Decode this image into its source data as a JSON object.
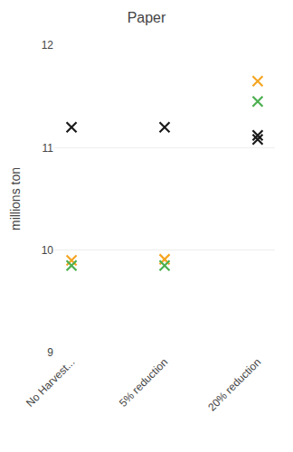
{
  "chart_data": {
    "type": "scatter",
    "title": "Paper",
    "ylabel": "millions ton",
    "categories": [
      "No Harvest...",
      "5% reduction",
      "20% reduction"
    ],
    "series": [
      {
        "color": "#1a1a1a",
        "values": [
          11.2,
          11.2,
          11.12
        ]
      },
      {
        "color": "#f5a623",
        "values": [
          9.9,
          9.91,
          11.65
        ]
      },
      {
        "color": "#4caf50",
        "values": [
          9.85,
          9.85,
          11.45
        ]
      },
      {
        "color": "#1a1a1a",
        "values": [
          null,
          null,
          11.08
        ]
      }
    ],
    "ylim": [
      9,
      12
    ],
    "yticks": [
      9,
      10,
      11,
      12
    ],
    "grid": true,
    "marker": "x"
  }
}
